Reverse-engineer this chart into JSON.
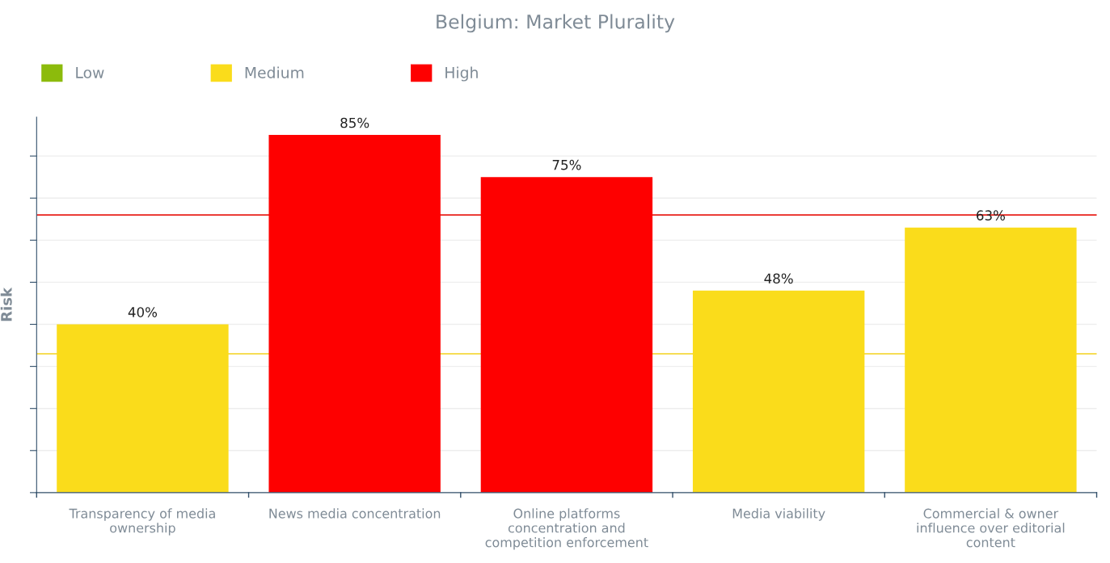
{
  "chart_data": {
    "type": "bar",
    "title": "Belgium: Market Plurality",
    "ylabel": "Risk",
    "categories": [
      "Transparency of media ownership",
      "News media concentration",
      "Online platforms concentration and competition enforcement",
      "Media viability",
      "Commercial & owner influence over editorial content"
    ],
    "stacked": true,
    "series": [
      {
        "name": "Low",
        "color": "#8cbb0c",
        "values": [
          null,
          null,
          null,
          null,
          null
        ]
      },
      {
        "name": "Medium",
        "color": "#fadc1b",
        "values": [
          40,
          null,
          null,
          48,
          63
        ],
        "value_labels": [
          "40%",
          null,
          null,
          "48%",
          "63%"
        ]
      },
      {
        "name": "High",
        "color": "#fe0000",
        "values": [
          null,
          85,
          75,
          null,
          null
        ],
        "value_labels": [
          null,
          "85%",
          "75%",
          null,
          null
        ]
      }
    ],
    "ref_lines": [
      {
        "axis": "y",
        "value": 66,
        "label": null,
        "color": "#e8201a"
      },
      {
        "axis": "y",
        "value": 33,
        "label": null,
        "color": "#f3d21c"
      }
    ],
    "grid": "y",
    "legend": "top left"
  }
}
